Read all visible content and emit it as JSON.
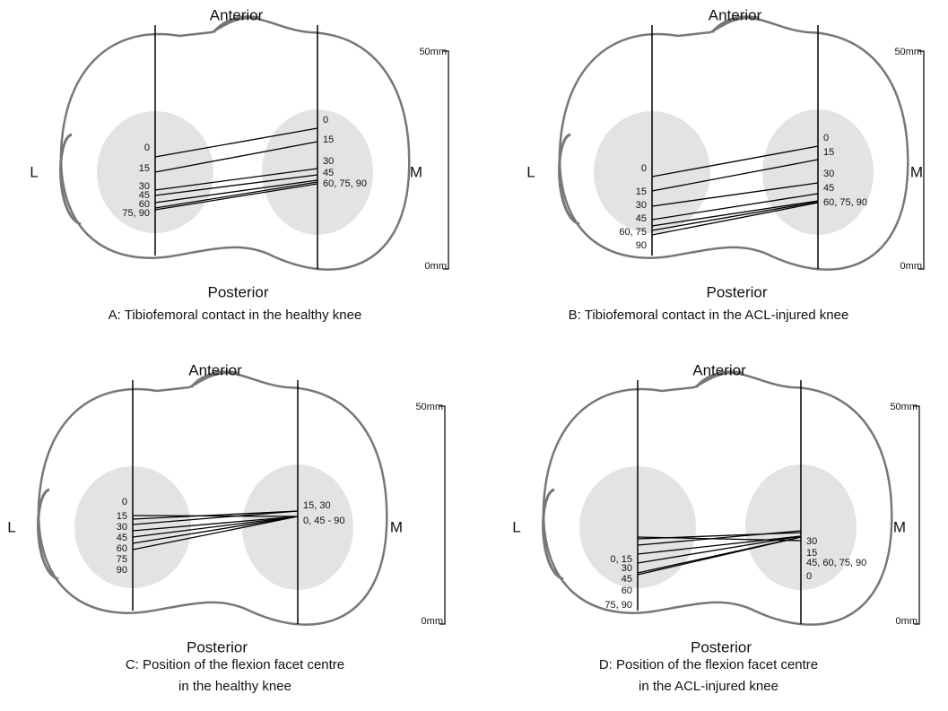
{
  "panels": [
    {
      "anterior": "Anterior",
      "posterior": "Posterior",
      "lateral": "L",
      "medial": "M",
      "scale_top": "50mm",
      "scale_bottom": "0mm",
      "caption": [
        "A: Tibiofemoral contact in the healthy knee"
      ],
      "lateral_labels": [
        "0",
        "15",
        "30",
        "45",
        "60",
        "75, 90"
      ],
      "medial_labels": [
        "0",
        "15",
        "30",
        "45",
        "60, 75, 90"
      ]
    },
    {
      "anterior": "Anterior",
      "posterior": "Posterior",
      "lateral": "L",
      "medial": "M",
      "scale_top": "50mm",
      "scale_bottom": "0mm",
      "caption": [
        "B: Tibiofemoral contact in the ACL-injured knee"
      ],
      "lateral_labels": [
        "0",
        "15",
        "30",
        "45",
        "60, 75",
        "90"
      ],
      "medial_labels": [
        "0",
        "15",
        "30",
        "45",
        "60, 75, 90"
      ]
    },
    {
      "anterior": "Anterior",
      "posterior": "Posterior",
      "lateral": "L",
      "medial": "M",
      "scale_top": "50mm",
      "scale_bottom": "0mm",
      "caption": [
        "C: Position of the flexion facet centre",
        "in the healthy knee"
      ],
      "lateral_labels": [
        "0",
        "15",
        "30",
        "45",
        "60",
        "75",
        "90"
      ],
      "medial_labels": [
        "15, 30",
        "0, 45 - 90"
      ]
    },
    {
      "anterior": "Anterior",
      "posterior": "Posterior",
      "lateral": "L",
      "medial": "M",
      "scale_top": "50mm",
      "scale_bottom": "0mm",
      "caption": [
        "D: Position of the flexion facet centre",
        "in the ACL-injured knee"
      ],
      "lateral_labels": [
        "0, 15",
        "30",
        "45",
        "60",
        "75, 90"
      ],
      "medial_labels": [
        "30",
        "15",
        "45, 60, 75, 90",
        "0"
      ]
    }
  ]
}
